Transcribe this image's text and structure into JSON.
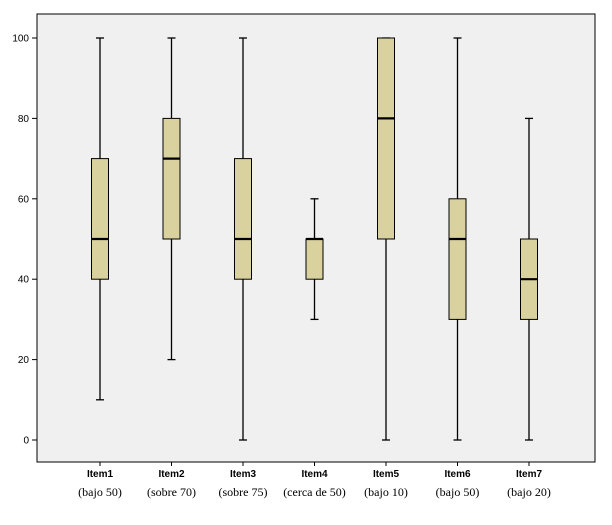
{
  "chart_data": {
    "type": "boxplot",
    "title": "",
    "xlabel": "",
    "ylabel": "",
    "ylim": [
      -5,
      105
    ],
    "yticks": [
      0,
      20,
      40,
      60,
      80,
      100
    ],
    "grid": false,
    "box_color": "#d9d29e",
    "plot_background": "#f0f0f0",
    "categories": [
      {
        "label": "Item1",
        "sublabel": "(bajo 50)",
        "min": 10,
        "q1": 40,
        "median": 50,
        "q3": 70,
        "max": 100
      },
      {
        "label": "Item2",
        "sublabel": "(sobre 70)",
        "min": 20,
        "q1": 50,
        "median": 70,
        "q3": 80,
        "max": 100
      },
      {
        "label": "Item3",
        "sublabel": "(sobre 75)",
        "min": 0,
        "q1": 40,
        "median": 50,
        "q3": 70,
        "max": 100
      },
      {
        "label": "Item4",
        "sublabel": "(cerca de 50)",
        "min": 30,
        "q1": 40,
        "median": 50,
        "q3": 50,
        "max": 60
      },
      {
        "label": "Item5",
        "sublabel": "(bajo 10)",
        "min": 0,
        "q1": 50,
        "median": 80,
        "q3": 100,
        "max": 100
      },
      {
        "label": "Item6",
        "sublabel": "(bajo 50)",
        "min": 0,
        "q1": 30,
        "median": 50,
        "q3": 60,
        "max": 100
      },
      {
        "label": "Item7",
        "sublabel": "(bajo 20)",
        "min": 0,
        "q1": 30,
        "median": 40,
        "q3": 50,
        "max": 80
      }
    ]
  }
}
